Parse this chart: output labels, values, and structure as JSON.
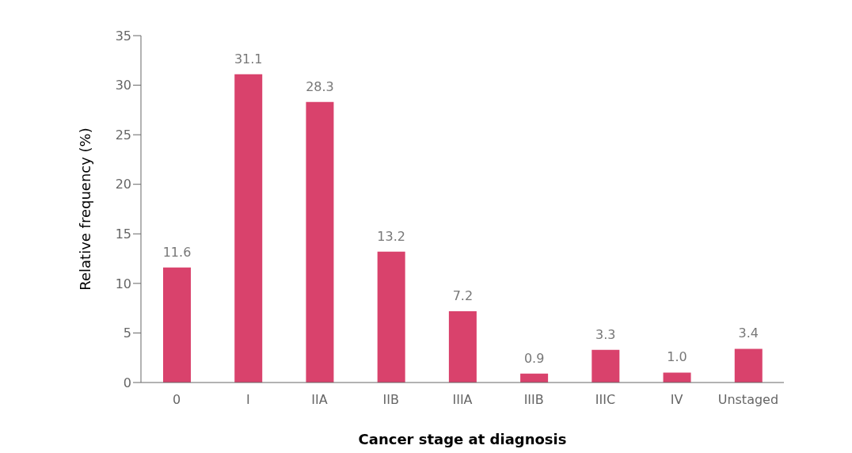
{
  "chart_data": {
    "type": "bar",
    "xlabel": "Cancer stage at diagnosis",
    "ylabel": "Relative frequency (%)",
    "categories": [
      "0",
      "I",
      "IIA",
      "IIB",
      "IIIA",
      "IIIB",
      "IIIC",
      "IV",
      "Unstaged"
    ],
    "values": [
      11.6,
      31.1,
      28.3,
      13.2,
      7.2,
      0.9,
      3.3,
      1.0,
      3.4
    ],
    "value_labels": [
      "11.6",
      "31.1",
      "28.3",
      "13.2",
      "7.2",
      "0.9",
      "3.3",
      "1.0",
      "3.4"
    ],
    "color": "#d9426c",
    "ylim": [
      0,
      35
    ],
    "yticks": [
      0,
      5,
      10,
      15,
      20,
      25,
      30,
      35
    ],
    "grid": false,
    "legend": false
  }
}
